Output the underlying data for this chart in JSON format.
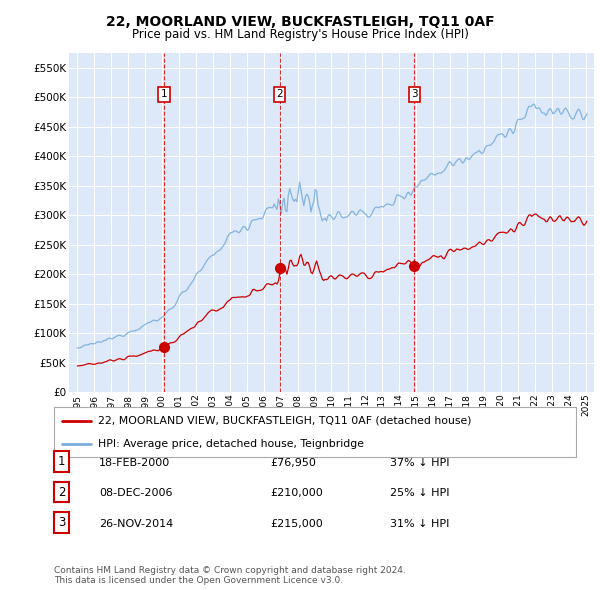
{
  "title": "22, MOORLAND VIEW, BUCKFASTLEIGH, TQ11 0AF",
  "subtitle": "Price paid vs. HM Land Registry's House Price Index (HPI)",
  "background_color": "#dde8f8",
  "grid_color": "#ffffff",
  "red_color": "#cc0000",
  "blue_color": "#7aaddb",
  "sale_dates_num": [
    2000.12,
    2006.93,
    2014.9
  ],
  "sale_prices": [
    76950,
    210000,
    215000
  ],
  "sale_labels": [
    "1",
    "2",
    "3"
  ],
  "legend_line1": "22, MOORLAND VIEW, BUCKFASTLEIGH, TQ11 0AF (detached house)",
  "legend_line2": "HPI: Average price, detached house, Teignbridge",
  "table_data": [
    [
      "1",
      "18-FEB-2000",
      "£76,950",
      "37% ↓ HPI"
    ],
    [
      "2",
      "08-DEC-2006",
      "£210,000",
      "25% ↓ HPI"
    ],
    [
      "3",
      "26-NOV-2014",
      "£215,000",
      "31% ↓ HPI"
    ]
  ],
  "footnote1": "Contains HM Land Registry data © Crown copyright and database right 2024.",
  "footnote2": "This data is licensed under the Open Government Licence v3.0.",
  "ylim": [
    0,
    575000
  ],
  "yticks": [
    0,
    50000,
    100000,
    150000,
    200000,
    250000,
    300000,
    350000,
    400000,
    450000,
    500000,
    550000
  ],
  "ytick_labels": [
    "£0",
    "£50K",
    "£100K",
    "£150K",
    "£200K",
    "£250K",
    "£300K",
    "£350K",
    "£400K",
    "£450K",
    "£500K",
    "£550K"
  ],
  "xlim_start": 1994.5,
  "xlim_end": 2025.5
}
